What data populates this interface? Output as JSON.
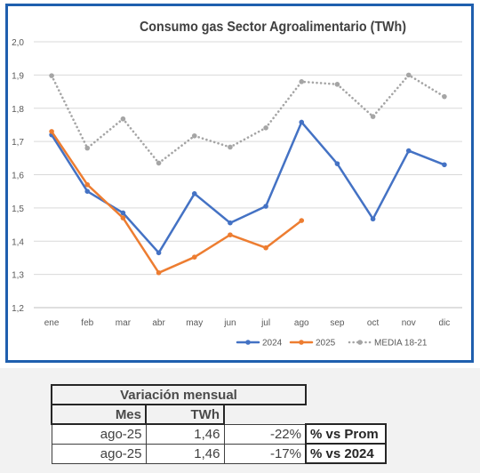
{
  "chart_data": {
    "type": "line",
    "title": "Consumo gas Sector Agroalimentario (TWh)",
    "categories": [
      "ene",
      "feb",
      "mar",
      "abr",
      "may",
      "jun",
      "jul",
      "ago",
      "sep",
      "oct",
      "nov",
      "dic"
    ],
    "ylim": [
      1.2,
      2.0
    ],
    "yticks": [
      "1,2",
      "1,3",
      "1,4",
      "1,5",
      "1,6",
      "1,7",
      "1,8",
      "1,9",
      "2,0"
    ],
    "grid": true,
    "legend_position": "bottom-right",
    "series": [
      {
        "name": "2024",
        "color": "#4472c4",
        "style": "solid",
        "values": [
          1.72,
          1.55,
          1.485,
          1.365,
          1.543,
          1.455,
          1.505,
          1.758,
          1.633,
          1.467,
          1.672,
          1.63
        ]
      },
      {
        "name": "2025",
        "color": "#ed7d31",
        "style": "solid",
        "values": [
          1.73,
          1.57,
          1.47,
          1.305,
          1.352,
          1.419,
          1.38,
          1.462,
          null,
          null,
          null,
          null
        ]
      },
      {
        "name": "MEDIA 18-21",
        "color": "#a5a5a5",
        "style": "dotted",
        "values": [
          1.898,
          1.68,
          1.768,
          1.635,
          1.717,
          1.683,
          1.741,
          1.88,
          1.872,
          1.775,
          1.9,
          1.835
        ]
      }
    ]
  },
  "table": {
    "title": "Variación mensual",
    "col_mes": "Mes",
    "col_twh": "TWh",
    "rows": [
      {
        "mes": "ago-25",
        "twh": "1,46",
        "pct": "-22%",
        "label": "% vs Prom"
      },
      {
        "mes": "ago-25",
        "twh": "1,46",
        "pct": "-17%",
        "label": "% vs 2024"
      }
    ]
  }
}
